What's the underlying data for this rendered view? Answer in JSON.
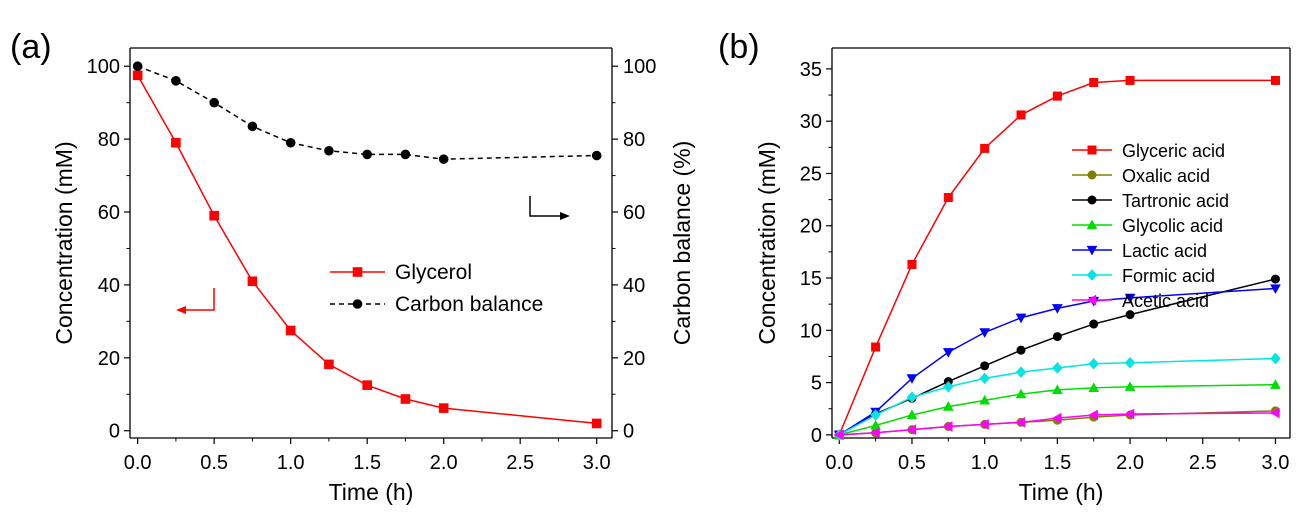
{
  "chart_data": [
    {
      "type": "line",
      "panel_label": "(a)",
      "xlabel": "Time (h)",
      "ylabel": "Concentration (mM)",
      "ylabel_right": "Carbon balance (%)",
      "xlim": [
        -0.05,
        3.1
      ],
      "ylim": [
        -2,
        105
      ],
      "ylim_right": [
        -2,
        105
      ],
      "xticks": [
        "0.0",
        "0.5",
        "1.0",
        "1.5",
        "2.0",
        "2.5",
        "3.0"
      ],
      "yticks": [
        "0",
        "20",
        "40",
        "60",
        "80",
        "100"
      ],
      "yticks_right": [
        "0",
        "20",
        "40",
        "60",
        "80",
        "100"
      ],
      "legend_position": "center-right",
      "series": [
        {
          "name": "Glycerol",
          "axis": "left",
          "color": "#ff0000",
          "marker": "square",
          "line_style": "solid",
          "x": [
            0,
            0.25,
            0.5,
            0.75,
            1.0,
            1.25,
            1.5,
            1.75,
            2.0,
            3.0
          ],
          "y": [
            97.5,
            79,
            59,
            41,
            27.5,
            18.2,
            12.5,
            8.7,
            6.2,
            2
          ]
        },
        {
          "name": "Carbon balance",
          "axis": "right",
          "color": "#000000",
          "marker": "circle",
          "line_style": "dashed",
          "x": [
            0,
            0.25,
            0.5,
            0.75,
            1.0,
            1.25,
            1.5,
            1.75,
            2.0,
            3.0
          ],
          "y": [
            100,
            96,
            90,
            83.5,
            79,
            76.8,
            75.8,
            75.8,
            74.5,
            75.5
          ]
        }
      ],
      "annotations": [
        {
          "type": "arrow",
          "direction": "left",
          "points_to": "left-axis",
          "color": "#ff0000"
        },
        {
          "type": "arrow",
          "direction": "right",
          "points_to": "right-axis",
          "color": "#000000"
        }
      ]
    },
    {
      "type": "line",
      "panel_label": "(b)",
      "xlabel": "Time (h)",
      "ylabel": "Concentration (mM)",
      "xlim": [
        -0.05,
        3.1
      ],
      "ylim": [
        -0.3,
        37
      ],
      "xticks": [
        "0.0",
        "0.5",
        "1.0",
        "1.5",
        "2.0",
        "2.5",
        "3.0"
      ],
      "yticks": [
        "0",
        "5",
        "10",
        "15",
        "20",
        "25",
        "30",
        "35"
      ],
      "legend_position": "top-right",
      "series": [
        {
          "name": "Glyceric acid",
          "color": "#ff0000",
          "marker": "square",
          "x": [
            0,
            0.25,
            0.5,
            0.75,
            1.0,
            1.25,
            1.5,
            1.75,
            2.0,
            3.0
          ],
          "y": [
            0,
            8.4,
            16.3,
            22.7,
            27.4,
            30.6,
            32.4,
            33.7,
            33.9,
            33.9
          ]
        },
        {
          "name": "Oxalic acid",
          "color": "#808000",
          "marker": "circle",
          "x": [
            0,
            0.25,
            0.5,
            0.75,
            1.0,
            1.25,
            1.5,
            1.75,
            2.0,
            3.0
          ],
          "y": [
            0,
            0.2,
            0.5,
            0.8,
            1.0,
            1.2,
            1.4,
            1.7,
            1.9,
            2.3
          ]
        },
        {
          "name": "Tartronic acid",
          "color": "#000000",
          "marker": "circle",
          "x": [
            0,
            0.25,
            0.5,
            0.75,
            1.0,
            1.25,
            1.5,
            1.75,
            2.0,
            3.0
          ],
          "y": [
            0,
            2.0,
            3.5,
            5.1,
            6.6,
            8.1,
            9.4,
            10.6,
            11.5,
            14.9
          ]
        },
        {
          "name": "Glycolic acid",
          "color": "#00dd00",
          "marker": "triangle-up",
          "x": [
            0,
            0.25,
            0.5,
            0.75,
            1.0,
            1.25,
            1.5,
            1.75,
            2.0,
            3.0
          ],
          "y": [
            0,
            0.9,
            1.9,
            2.7,
            3.3,
            3.9,
            4.3,
            4.5,
            4.6,
            4.8
          ]
        },
        {
          "name": "Lactic acid",
          "color": "#0000ff",
          "marker": "triangle-down",
          "x": [
            0,
            0.25,
            0.5,
            0.75,
            1.0,
            1.25,
            1.5,
            1.75,
            2.0,
            3.0
          ],
          "y": [
            0,
            2.2,
            5.4,
            7.9,
            9.8,
            11.2,
            12.1,
            12.8,
            13.1,
            14.0
          ]
        },
        {
          "name": "Formic acid",
          "color": "#00e5e5",
          "marker": "diamond",
          "x": [
            0,
            0.25,
            0.5,
            0.75,
            1.0,
            1.25,
            1.5,
            1.75,
            2.0,
            3.0
          ],
          "y": [
            0,
            1.9,
            3.6,
            4.6,
            5.4,
            6.0,
            6.4,
            6.8,
            6.9,
            7.3
          ]
        },
        {
          "name": "Acetic acid",
          "color": "#ff00ff",
          "marker": "triangle-left",
          "x": [
            0,
            0.25,
            0.5,
            0.75,
            1.0,
            1.25,
            1.5,
            1.75,
            2.0,
            3.0
          ],
          "y": [
            0,
            0.2,
            0.5,
            0.8,
            1.0,
            1.2,
            1.6,
            1.9,
            2.0,
            2.1
          ]
        }
      ]
    }
  ]
}
